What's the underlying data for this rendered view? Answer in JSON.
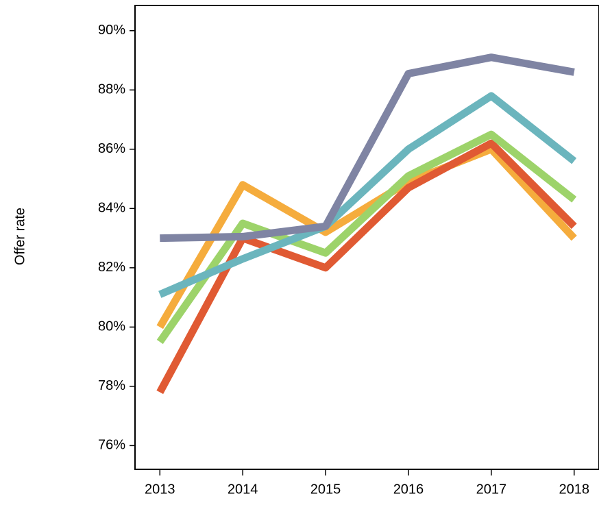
{
  "chart_data": {
    "type": "line",
    "y_label": "Offer rate",
    "x": [
      2013,
      2014,
      2015,
      2016,
      2017,
      2018
    ],
    "xlim": [
      2012.7,
      2018.3
    ],
    "xticks": [
      2013,
      2014,
      2015,
      2016,
      2017,
      2018
    ],
    "ylim": [
      75.2,
      90.85
    ],
    "yticks": [
      {
        "value": 76,
        "label": "76%"
      },
      {
        "value": 78,
        "label": "78%"
      },
      {
        "value": 80,
        "label": "80%"
      },
      {
        "value": 82,
        "label": "82%"
      },
      {
        "value": 84,
        "label": "84%"
      },
      {
        "value": 86,
        "label": "86%"
      },
      {
        "value": 88,
        "label": "88%"
      },
      {
        "value": 90,
        "label": "90%"
      }
    ],
    "series": [
      {
        "color": "#f5ac3d",
        "values": [
          80.0,
          84.8,
          83.2,
          84.9,
          86.0,
          83.0
        ]
      },
      {
        "color": "#e05a33",
        "values": [
          77.8,
          83.0,
          82.0,
          84.7,
          86.2,
          83.4
        ]
      },
      {
        "color": "#9dd36a",
        "values": [
          79.5,
          83.5,
          82.5,
          85.1,
          86.5,
          84.3
        ]
      },
      {
        "color": "#6bb5bd",
        "values": [
          81.1,
          82.3,
          83.4,
          86.0,
          87.8,
          85.6
        ]
      },
      {
        "color": "#7f84a3",
        "values": [
          83.0,
          83.05,
          83.4,
          88.55,
          89.1,
          88.6
        ]
      }
    ]
  }
}
